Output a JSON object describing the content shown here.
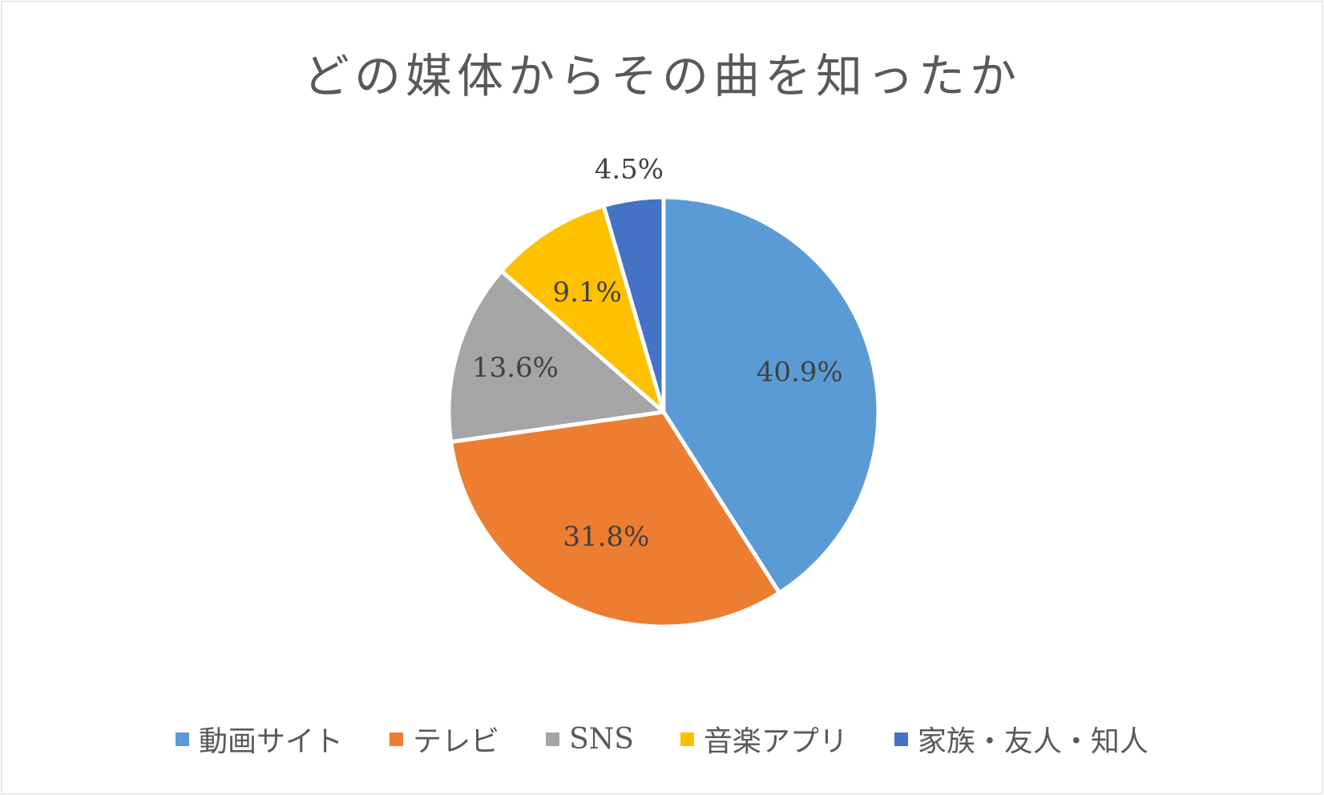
{
  "chart_data": {
    "type": "pie",
    "title": "どの媒体からその曲を知ったか",
    "categories": [
      "動画サイト",
      "テレビ",
      "SNS",
      "音楽アプリ",
      "家族・友人・知人"
    ],
    "values": [
      40.9,
      31.8,
      13.6,
      9.1,
      4.5
    ],
    "data_labels": [
      "40.9%",
      "31.8%",
      "13.6%",
      "9.1%",
      "4.5%"
    ],
    "colors": [
      "#5b9bd5",
      "#ed7d31",
      "#a5a5a5",
      "#ffc000",
      "#4472c4"
    ],
    "legend": "bottom",
    "start_angle": "12 o'clock",
    "direction": "clockwise"
  }
}
